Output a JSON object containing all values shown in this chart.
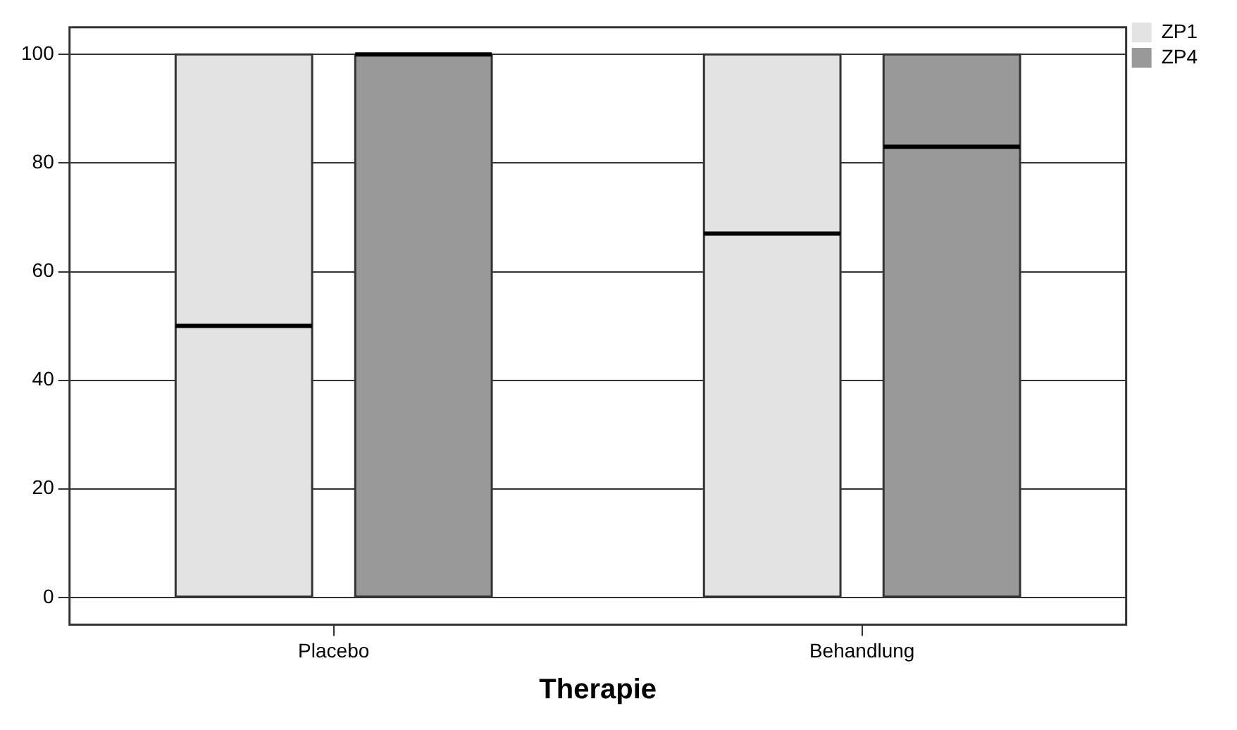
{
  "chart_data": {
    "type": "box",
    "xlabel": "Therapie",
    "categories": [
      "Placebo",
      "Behandlung"
    ],
    "series": [
      {
        "name": "ZP1",
        "color": "#e3e3e3",
        "boxes": [
          {
            "low": 0,
            "q1": 0,
            "median": 50,
            "q3": 100,
            "high": 100
          },
          {
            "low": 0,
            "q1": 0,
            "median": 67,
            "q3": 100,
            "high": 100
          }
        ]
      },
      {
        "name": "ZP4",
        "color": "#999999",
        "boxes": [
          {
            "low": 0,
            "q1": 0,
            "median": 100,
            "q3": 100,
            "high": 100
          },
          {
            "low": 0,
            "q1": 0,
            "median": 83,
            "q3": 100,
            "high": 100
          }
        ]
      }
    ],
    "ylim": [
      -5,
      105
    ],
    "yticks": [
      0,
      20,
      40,
      60,
      80,
      100
    ],
    "grid": "y",
    "legend": "top right"
  }
}
